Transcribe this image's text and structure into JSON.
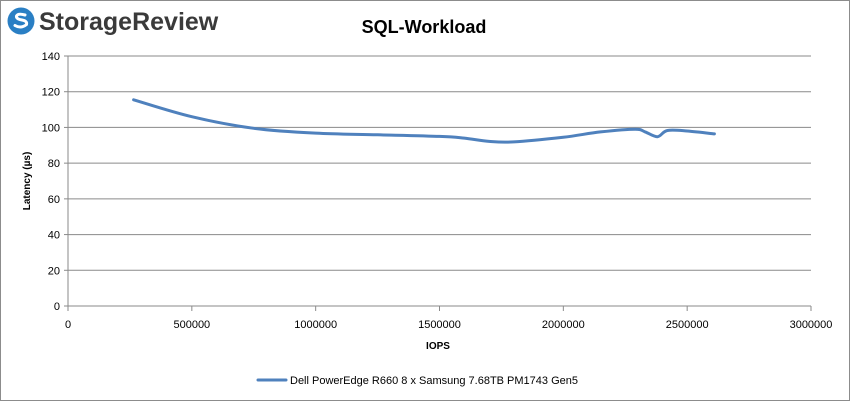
{
  "brand": {
    "name": "StorageReview",
    "accent": "#2a7fc4"
  },
  "chart_data": {
    "type": "line",
    "title": "SQL-Workload",
    "xlabel": "IOPS",
    "ylabel": "Latency (µs)",
    "xlim": [
      0,
      3000000
    ],
    "ylim": [
      0,
      140
    ],
    "xticks": [
      0,
      500000,
      1000000,
      1500000,
      2000000,
      2500000,
      3000000
    ],
    "yticks": [
      0,
      20,
      40,
      60,
      80,
      100,
      120,
      140
    ],
    "grid": "horizontal",
    "legend": "bottom-center",
    "series": [
      {
        "name": "Dell PowerEdge R660 8 x Samsung 7.68TB PM1743 Gen5",
        "color": "#4f81bd",
        "x": [
          265000,
          500000,
          750000,
          1000000,
          1250000,
          1500000,
          1600000,
          1700000,
          1800000,
          2000000,
          2150000,
          2290000,
          2330000,
          2380000,
          2420000,
          2500000,
          2610000
        ],
        "y": [
          115.5,
          106,
          99.5,
          96.8,
          95.9,
          95,
          94,
          92.2,
          91.9,
          94.5,
          97.5,
          99.0,
          97.5,
          94.8,
          98.3,
          98,
          96.4
        ]
      }
    ]
  }
}
